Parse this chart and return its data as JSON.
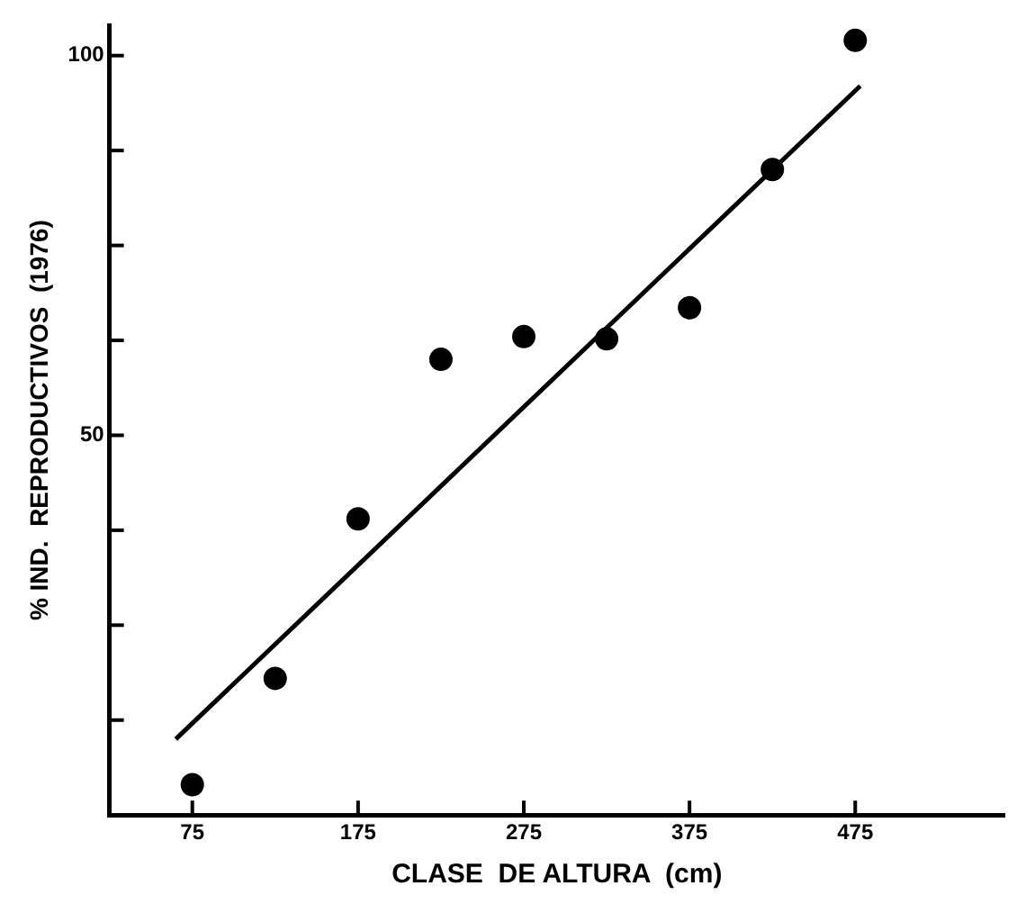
{
  "chart_data": {
    "type": "scatter",
    "xlabel": "CLASE  DE ALTURA  (cm)",
    "ylabel": "% IND.  REPRODUCTIVOS  (1976)",
    "x": [
      75,
      125,
      175,
      225,
      275,
      325,
      375,
      425,
      475
    ],
    "series": [
      {
        "color": "#000000",
        "marker": "circle",
        "values": [
          4,
          18,
          39,
          60,
          63,
          62.7,
          66.8,
          85,
          102
        ]
      },
      {
        "type": "line",
        "color": "#000000",
        "x": [
          65,
          478
        ],
        "values": [
          10,
          96
        ]
      }
    ],
    "grid": false,
    "legend": false,
    "xlim": [
      25,
      565
    ],
    "xticks": [
      75,
      175,
      275,
      375,
      475
    ],
    "ylim": [
      0,
      104
    ],
    "yticks": [
      {
        "value": 12.5,
        "label": null
      },
      {
        "value": 25,
        "label": null
      },
      {
        "value": 37.5,
        "label": null
      },
      50,
      {
        "value": 62.5,
        "label": null
      },
      {
        "value": 75,
        "label": null
      },
      {
        "value": 87.5,
        "label": null
      },
      100
    ]
  }
}
